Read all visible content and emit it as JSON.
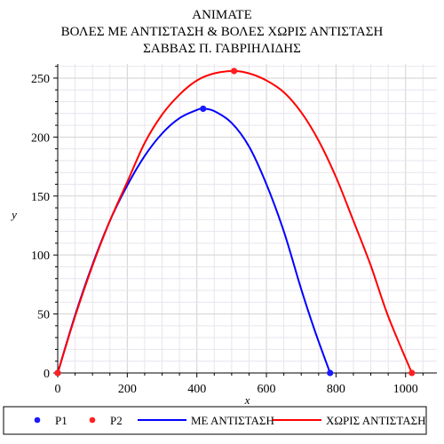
{
  "chart_data": {
    "type": "line",
    "title_lines": [
      "ANIMATE",
      "ΒΟΛΕΣ ΜΕ ΑΝΤΙΣΤΑΣΗ & ΒΟΛΕΣ ΧΩΡΙΣ ΑΝΤΙΣΤΑΣΗ",
      "ΣΑΒΒΑΣ Π. ΓΑΒΡΙΗΛΙΔΗΣ"
    ],
    "xlabel": "x",
    "ylabel": "y",
    "xlim": [
      0,
      1090
    ],
    "ylim": [
      0,
      262
    ],
    "x_ticks": [
      0,
      200,
      400,
      600,
      800,
      1000
    ],
    "y_ticks": [
      0,
      50,
      100,
      150,
      200,
      250
    ],
    "grid": true,
    "legend_position": "bottom",
    "points": [
      {
        "name": "P1",
        "color": "#1a1aff",
        "coords": [
          [
            0,
            0
          ],
          [
            418,
            224
          ],
          [
            783,
            0
          ]
        ]
      },
      {
        "name": "P2",
        "color": "#ff2020",
        "coords": [
          [
            0,
            0
          ],
          [
            507,
            256
          ],
          [
            1018,
            0
          ]
        ]
      }
    ],
    "series": [
      {
        "name": "ΜΕ ΑΝΤΙΣΤΑΣΗ",
        "color": "#0000ff",
        "x": [
          0,
          50,
          100,
          150,
          200,
          250,
          300,
          350,
          400,
          418,
          450,
          500,
          550,
          600,
          650,
          700,
          740,
          783
        ],
        "y": [
          0,
          49,
          92,
          129,
          159,
          184,
          203,
          216,
          223,
          224,
          222,
          212,
          192,
          160,
          120,
          71,
          35,
          0
        ]
      },
      {
        "name": "ΧΩΡΙΣ ΑΝΤΙΣΤΑΣΗ",
        "color": "#ff0000",
        "x": [
          0,
          50,
          100,
          150,
          200,
          250,
          300,
          350,
          400,
          450,
          507,
          550,
          600,
          650,
          700,
          750,
          800,
          850,
          900,
          950,
          1018
        ],
        "y": [
          0,
          48,
          91,
          129,
          162,
          195,
          219,
          236,
          248,
          254,
          256,
          254,
          248,
          238,
          221,
          197,
          166,
          129,
          91,
          48,
          0
        ]
      }
    ]
  }
}
